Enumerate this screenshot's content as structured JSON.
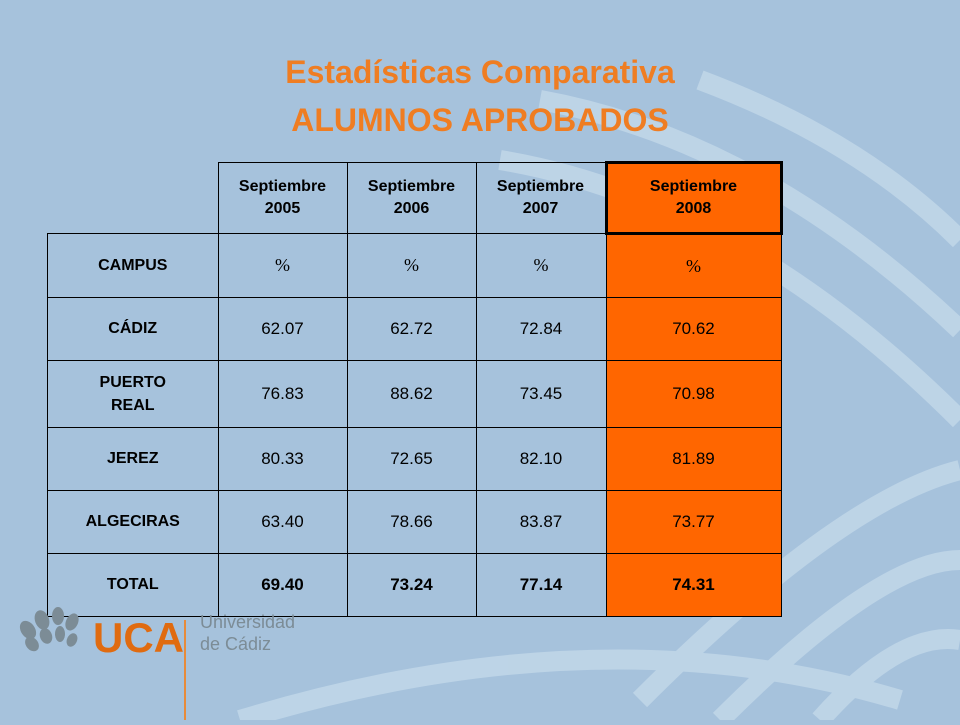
{
  "title_line1": "Estadísticas Comparativa",
  "title_line2": "ALUMNOS APROBADOS",
  "headers": [
    "Septiembre 2005",
    "Septiembre 2006",
    "Septiembre 2007",
    "Septiembre 2008"
  ],
  "unit_row": {
    "label": "CAMPUS",
    "unit": "%"
  },
  "rows": [
    {
      "label": "CÁDIZ",
      "values": [
        "62.07",
        "62.72",
        "72.84",
        "70.62"
      ]
    },
    {
      "label": "PUERTO REAL",
      "values": [
        "76.83",
        "88.62",
        "73.45",
        "70.98"
      ]
    },
    {
      "label": "JEREZ",
      "values": [
        "80.33",
        "72.65",
        "82.10",
        "81.89"
      ]
    },
    {
      "label": "ALGECIRAS",
      "values": [
        "63.40",
        "78.66",
        "83.87",
        "73.77"
      ]
    }
  ],
  "total": {
    "label": "TOTAL",
    "values": [
      "69.40",
      "73.24",
      "77.14",
      "74.31"
    ]
  },
  "brand": {
    "acronym": "UCA",
    "line1": "Universidad",
    "line2": "de Cádiz"
  },
  "colors": {
    "title": "#ef7d22",
    "highlight": "#ff6600",
    "background": "#a6c2dc"
  }
}
